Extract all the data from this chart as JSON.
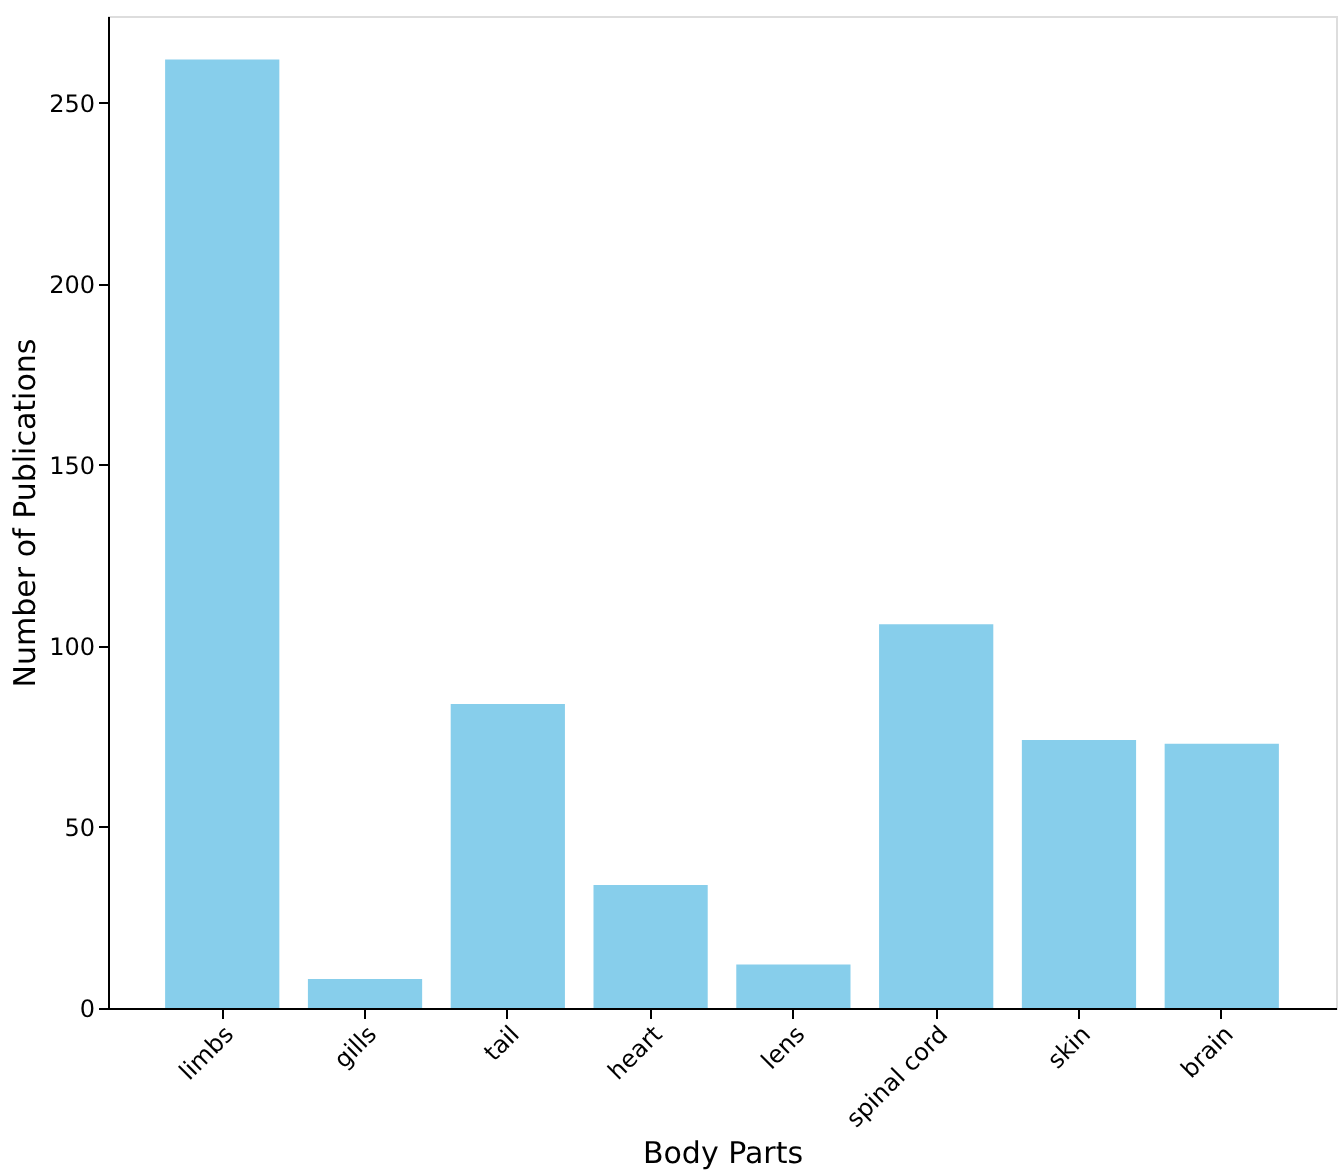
{
  "chart_data": {
    "type": "bar",
    "xlabel": "Body Parts",
    "ylabel": "Number of Publications",
    "categories": [
      "limbs",
      "gills",
      "tail",
      "heart",
      "lens",
      "spinal cord",
      "skin",
      "brain"
    ],
    "values": [
      262,
      8,
      84,
      34,
      12,
      106,
      74,
      73
    ],
    "color": "#87ceeb",
    "ylim": [
      0,
      274
    ],
    "yticks": [
      0,
      50,
      100,
      150,
      200,
      250
    ]
  }
}
